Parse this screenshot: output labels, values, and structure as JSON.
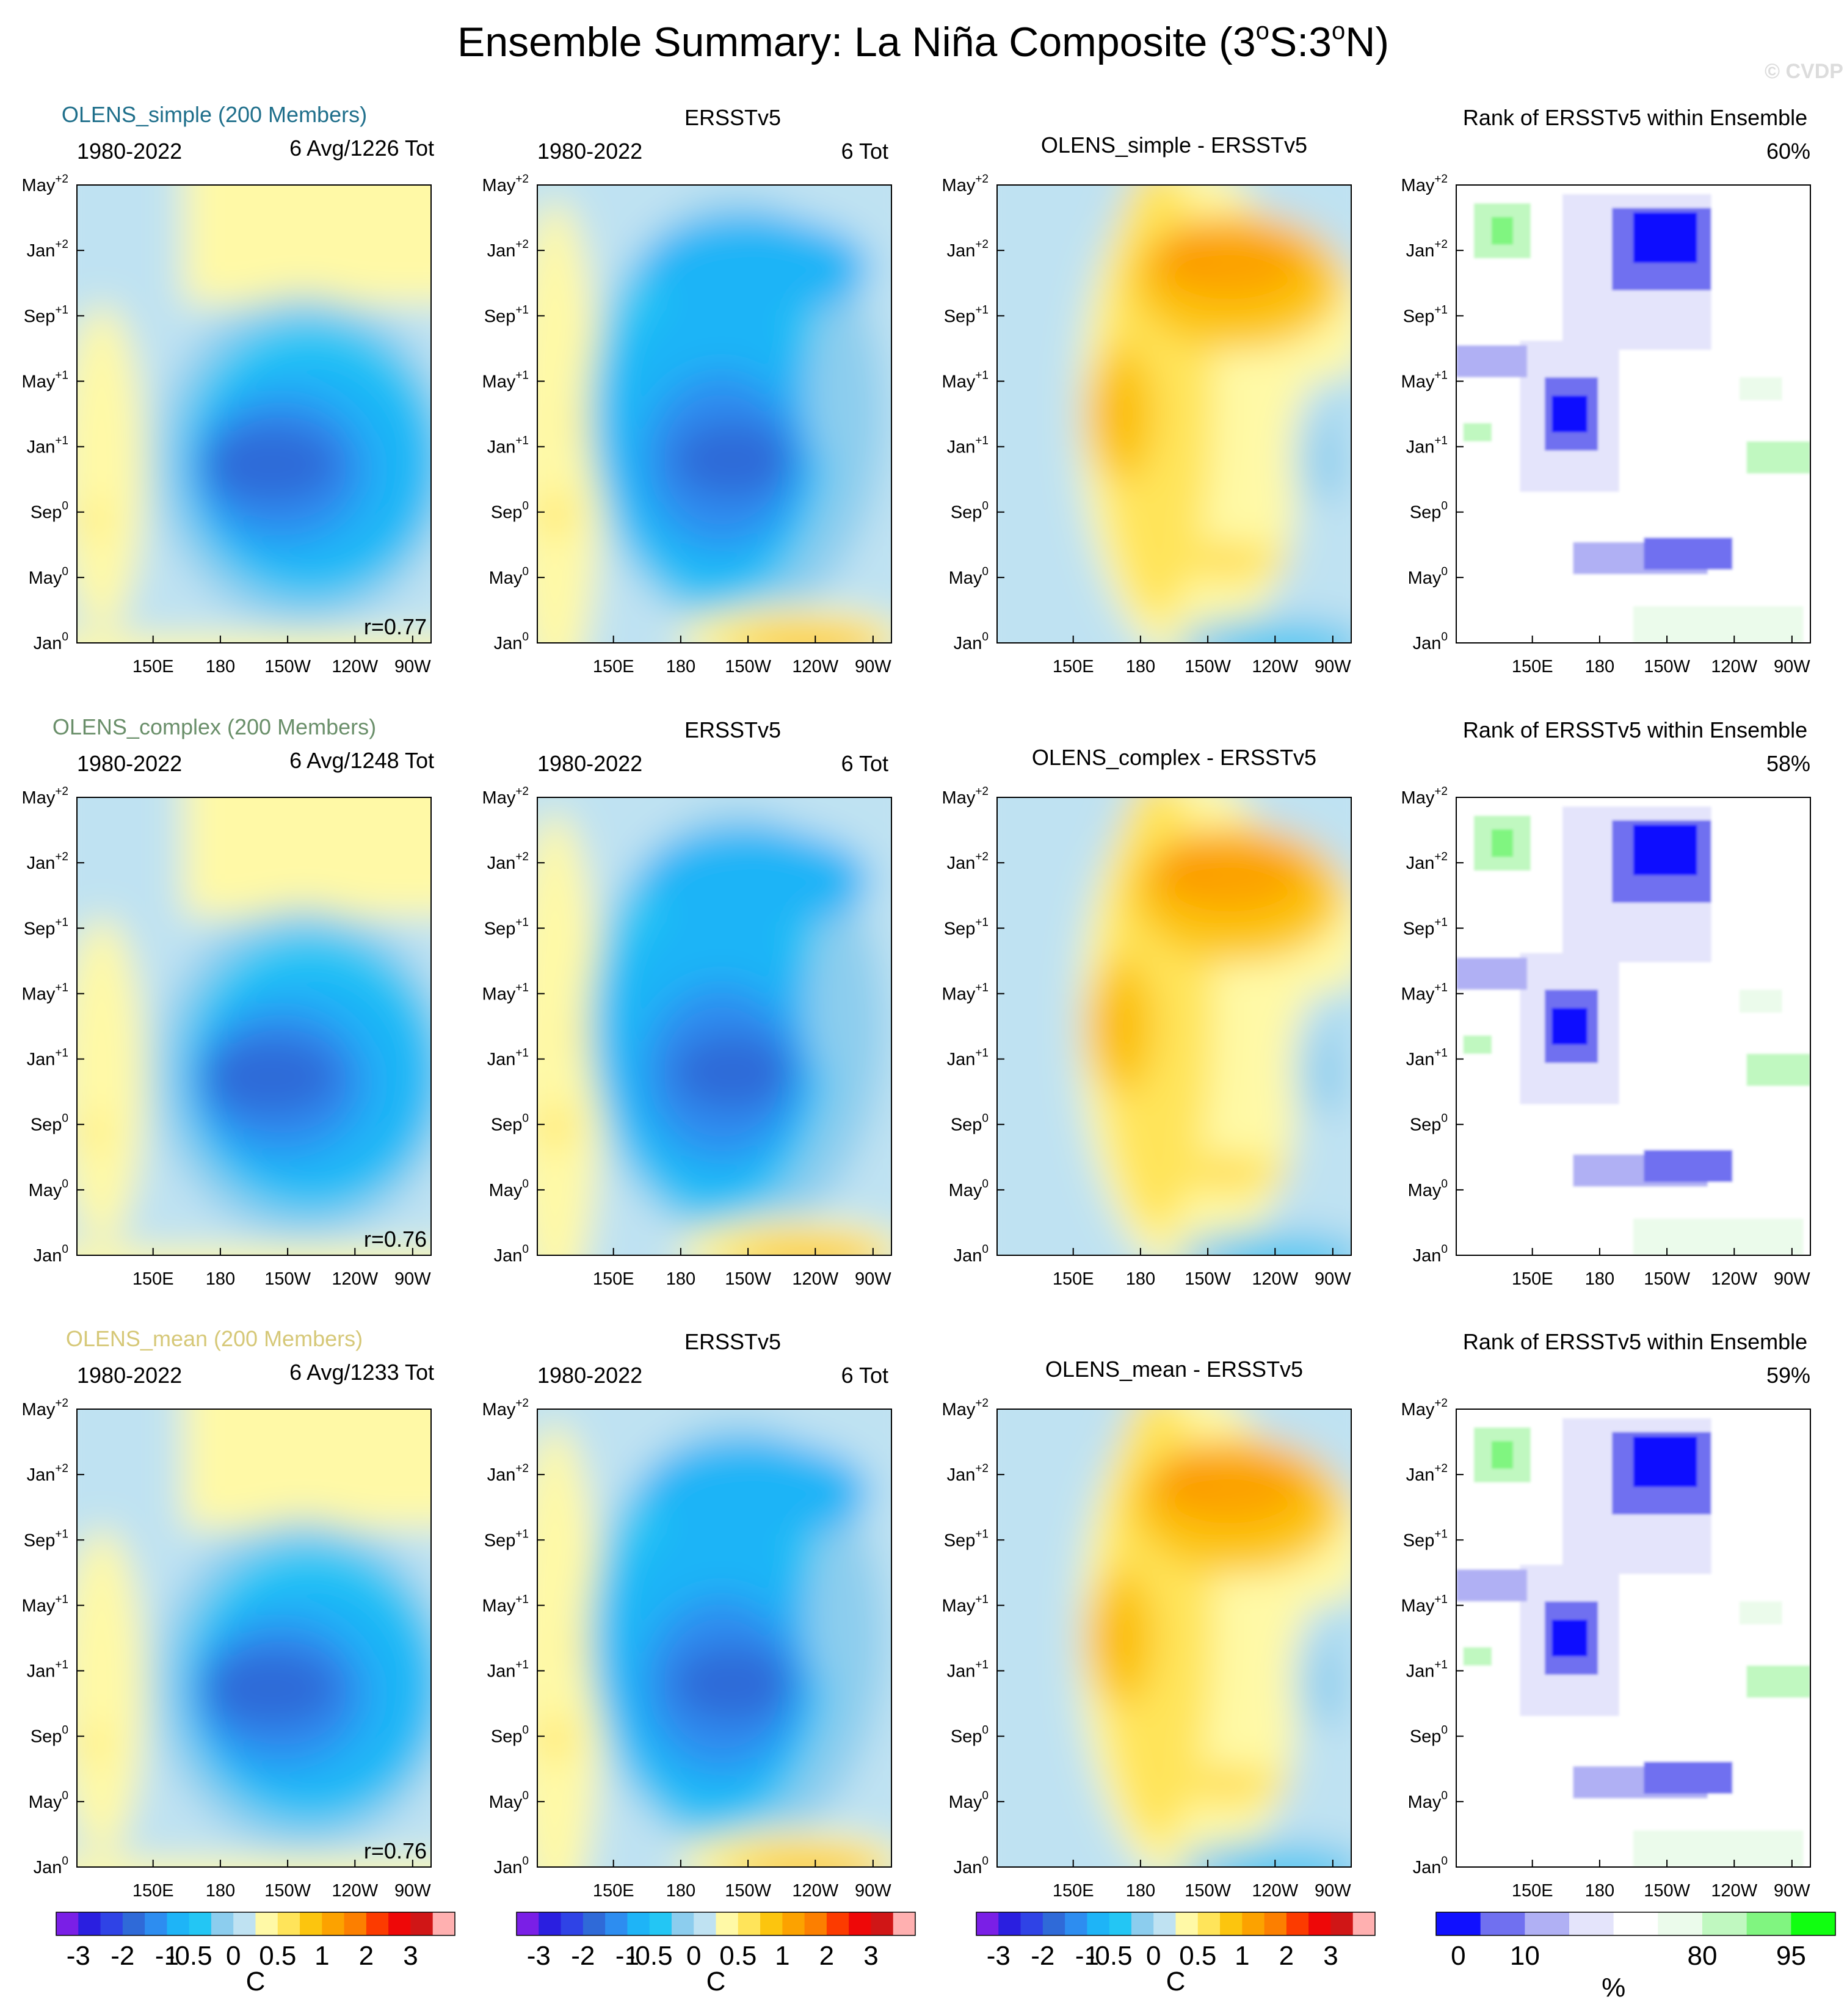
{
  "chart_data": {
    "type": "heatmap",
    "title": "Ensemble Summary: La Niña Composite (3",
    "title_lat1": "o",
    "title_mid": "S:3",
    "title_lat2": "o",
    "title_end": "N)",
    "watermark": "© CVDP",
    "x_ticks": [
      "150E",
      "180",
      "150W",
      "120W",
      "90W"
    ],
    "y_ticks": [
      {
        "base": "Jan",
        "sup": "0"
      },
      {
        "base": "May",
        "sup": "0"
      },
      {
        "base": "Sep",
        "sup": "0"
      },
      {
        "base": "Jan",
        "sup": "+1"
      },
      {
        "base": "May",
        "sup": "+1"
      },
      {
        "base": "Sep",
        "sup": "+1"
      },
      {
        "base": "Jan",
        "sup": "+2"
      },
      {
        "base": "May",
        "sup": "+2"
      }
    ],
    "rows": [
      {
        "model": "OLENS_simple (200 Members)",
        "model_color": "#1f6f8b",
        "period": "1980-2022",
        "model_count": "6 Avg/1226 Tot",
        "correlation": "r=0.77",
        "obs_title": "ERSSTv5",
        "obs_period": "1980-2022",
        "obs_count": "6 Tot",
        "diff_title": "OLENS_simple - ERSSTv5",
        "rank_title": "Rank of ERSSTv5 within Ensemble",
        "rank_pct": "60%"
      },
      {
        "model": "OLENS_complex (200 Members)",
        "model_color": "#6a8f6a",
        "period": "1980-2022",
        "model_count": "6 Avg/1248 Tot",
        "correlation": "r=0.76",
        "obs_title": "ERSSTv5",
        "obs_period": "1980-2022",
        "obs_count": "6 Tot",
        "diff_title": "OLENS_complex - ERSSTv5",
        "rank_title": "Rank of ERSSTv5 within Ensemble",
        "rank_pct": "58%"
      },
      {
        "model": "OLENS_mean (200 Members)",
        "model_color": "#d6c878",
        "period": "1980-2022",
        "model_count": "6 Avg/1233 Tot",
        "correlation": "r=0.76",
        "obs_title": "ERSSTv5",
        "obs_period": "1980-2022",
        "obs_count": "6 Tot",
        "diff_title": "OLENS_mean - ERSSTv5",
        "rank_title": "Rank of ERSSTv5 within Ensemble",
        "rank_pct": "59%"
      }
    ],
    "sst_colorbar": {
      "colors": [
        "#7a1fe6",
        "#2a1fe0",
        "#2f43e6",
        "#2f6ad8",
        "#2d8df0",
        "#1eb4f7",
        "#23c6f4",
        "#8ccdee",
        "#bfe2f2",
        "#fff9a6",
        "#ffe45a",
        "#fcc50e",
        "#fca200",
        "#fc7f00",
        "#fc3b00",
        "#ee0808",
        "#d01616",
        "#ffb0b0"
      ],
      "labels": [
        "-3",
        "-2",
        "-1",
        "-0.5",
        "0",
        "0.5",
        "1",
        "2",
        "3"
      ],
      "unit": "C"
    },
    "rank_colorbar": {
      "colors": [
        "#1010ff",
        "#7070f0",
        "#b0b0f4",
        "#e4e4fb",
        "#ffffff",
        "#ebfbeb",
        "#c0f8c0",
        "#80f580",
        "#10ff10"
      ],
      "labels": [
        "0",
        "10",
        "80",
        "95"
      ],
      "unit": "%"
    }
  }
}
